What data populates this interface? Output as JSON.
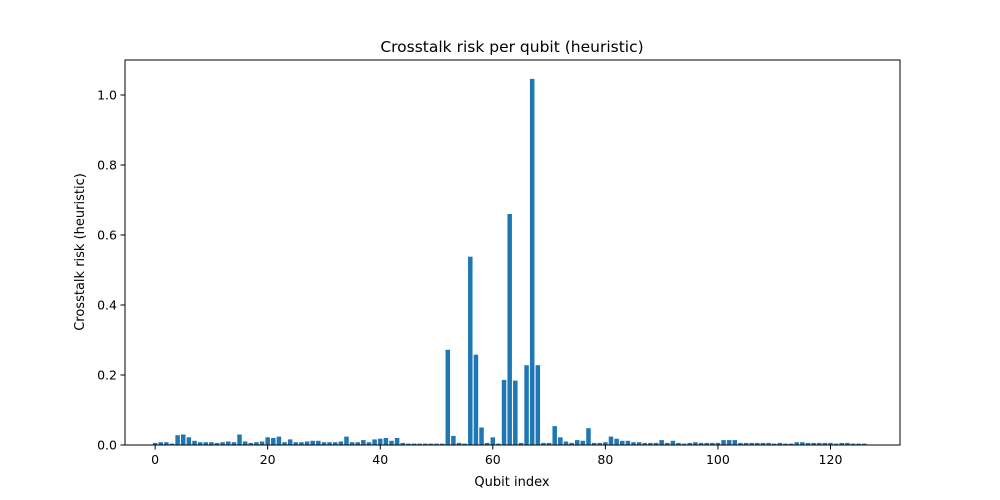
{
  "chart_data": {
    "type": "bar",
    "title": "Crosstalk risk per qubit (heuristic)",
    "xlabel": "Qubit index",
    "ylabel": "Crosstalk risk (heuristic)",
    "xlim": [
      -5.35,
      132.35
    ],
    "ylim": [
      0,
      1.1
    ],
    "x_ticks": [
      0,
      20,
      40,
      60,
      80,
      100,
      120
    ],
    "y_ticks": [
      0.0,
      0.2,
      0.4,
      0.6,
      0.8,
      1.0
    ],
    "y_tick_labels": [
      "0.0",
      "0.2",
      "0.4",
      "0.6",
      "0.8",
      "1.0"
    ],
    "grid": false,
    "bar_color": "#1f77b4",
    "bar_width": 0.8,
    "x": [
      0,
      1,
      2,
      3,
      4,
      5,
      6,
      7,
      8,
      9,
      10,
      11,
      12,
      13,
      14,
      15,
      16,
      17,
      18,
      19,
      20,
      21,
      22,
      23,
      24,
      25,
      26,
      27,
      28,
      29,
      30,
      31,
      32,
      33,
      34,
      35,
      36,
      37,
      38,
      39,
      40,
      41,
      42,
      43,
      44,
      45,
      46,
      47,
      48,
      49,
      50,
      51,
      52,
      53,
      54,
      55,
      56,
      57,
      58,
      59,
      60,
      61,
      62,
      63,
      64,
      65,
      66,
      67,
      68,
      69,
      70,
      71,
      72,
      73,
      74,
      75,
      76,
      77,
      78,
      79,
      80,
      81,
      82,
      83,
      84,
      85,
      86,
      87,
      88,
      89,
      90,
      91,
      92,
      93,
      94,
      95,
      96,
      97,
      98,
      99,
      100,
      101,
      102,
      103,
      104,
      105,
      106,
      107,
      108,
      109,
      110,
      111,
      112,
      113,
      114,
      115,
      116,
      117,
      118,
      119,
      120,
      121,
      122,
      123,
      124,
      125,
      126
    ],
    "values": [
      0.006,
      0.008,
      0.008,
      0.004,
      0.028,
      0.03,
      0.022,
      0.012,
      0.008,
      0.008,
      0.008,
      0.006,
      0.008,
      0.01,
      0.008,
      0.03,
      0.01,
      0.006,
      0.008,
      0.01,
      0.022,
      0.02,
      0.024,
      0.008,
      0.016,
      0.008,
      0.008,
      0.01,
      0.012,
      0.012,
      0.008,
      0.008,
      0.008,
      0.01,
      0.024,
      0.008,
      0.008,
      0.014,
      0.008,
      0.016,
      0.018,
      0.02,
      0.012,
      0.02,
      0.006,
      0.004,
      0.004,
      0.004,
      0.004,
      0.004,
      0.004,
      0.004,
      0.272,
      0.026,
      0.006,
      0.004,
      0.538,
      0.258,
      0.05,
      0.006,
      0.022,
      0.004,
      0.186,
      0.66,
      0.184,
      0.006,
      0.228,
      1.046,
      0.228,
      0.006,
      0.006,
      0.054,
      0.022,
      0.01,
      0.006,
      0.014,
      0.012,
      0.048,
      0.006,
      0.006,
      0.008,
      0.024,
      0.018,
      0.012,
      0.012,
      0.008,
      0.008,
      0.006,
      0.006,
      0.006,
      0.014,
      0.006,
      0.012,
      0.006,
      0.004,
      0.006,
      0.008,
      0.006,
      0.006,
      0.006,
      0.006,
      0.014,
      0.014,
      0.014,
      0.006,
      0.006,
      0.006,
      0.006,
      0.006,
      0.006,
      0.004,
      0.006,
      0.004,
      0.004,
      0.008,
      0.008,
      0.006,
      0.006,
      0.006,
      0.006,
      0.006,
      0.004,
      0.006,
      0.006,
      0.004,
      0.004,
      0.004
    ]
  }
}
